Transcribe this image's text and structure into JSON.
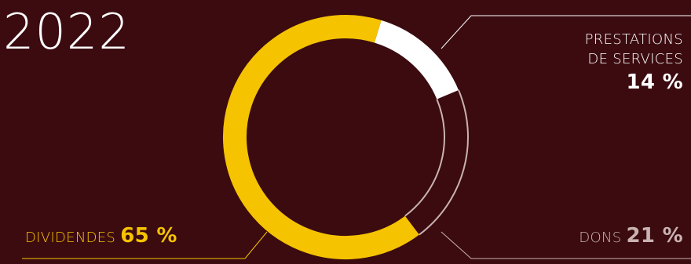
{
  "year": "2022",
  "colors": {
    "background": "#3b0b10",
    "dividendes": "#f5c300",
    "services": "#ffffff",
    "dons": "#c9b3b2"
  },
  "chart_data": {
    "type": "pie",
    "title": "2022",
    "slices": [
      {
        "name": "PRESTATIONS DE SERVICES",
        "name_lines": [
          "PRESTATIONS",
          "DE SERVICES"
        ],
        "value": 14,
        "label": "14 %"
      },
      {
        "name": "DONS",
        "value": 21,
        "label": "21 %"
      },
      {
        "name": "DIVIDENDES",
        "value": 65,
        "label": "65 %"
      }
    ]
  }
}
